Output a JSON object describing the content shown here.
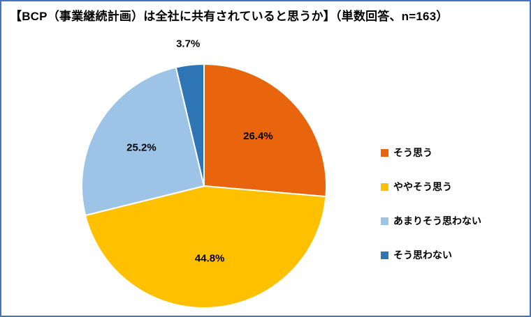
{
  "chart_data": {
    "type": "pie",
    "title": "【BCP（事業継続計画）は全社に共有されていると思うか】（単数回答、n=163）",
    "n_label": "n=163",
    "unit": "%",
    "legend_position": "right",
    "start_angle_deg": 0,
    "direction": "clockwise",
    "slices": [
      {
        "label": "そう思う",
        "value": 26.4,
        "display": "26.4%",
        "color": "#E8650D"
      },
      {
        "label": "ややそう思う",
        "value": 44.8,
        "display": "44.8%",
        "color": "#FFC000"
      },
      {
        "label": "あまりそう思わない",
        "value": 25.2,
        "display": "25.2%",
        "color": "#9DC3E6"
      },
      {
        "label": "そう思わない",
        "value": 3.7,
        "display": "3.7%",
        "color": "#2E75B6"
      }
    ]
  },
  "colors": {
    "frame_border": "#4472C4",
    "background": "#FFFFFF",
    "label_text": "#000000",
    "slice_separator": "#FFFFFF"
  }
}
